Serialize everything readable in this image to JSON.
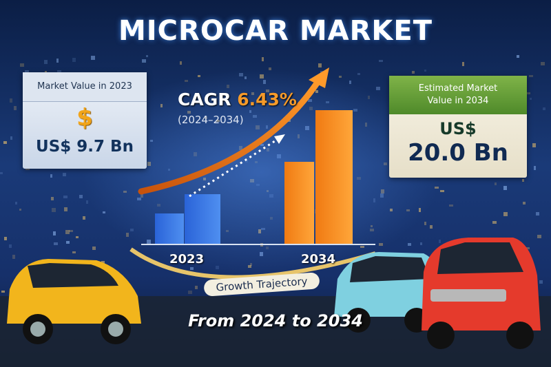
{
  "title": "MICROCAR MARKET",
  "left_card": {
    "heading": "Market Value in 2023",
    "icon": "$",
    "value": "US$ 9.7 Bn"
  },
  "cagr": {
    "label": "CAGR",
    "value": "6.43%",
    "period": "(2024–2034)"
  },
  "right_card": {
    "heading": "Estimated Market Value in 2034",
    "currency": "US$",
    "value": "20.0 Bn"
  },
  "axis_labels": [
    "2023",
    "2034"
  ],
  "arc_label": "Growth Trajectory",
  "footer": "From 2024 to 2034"
}
